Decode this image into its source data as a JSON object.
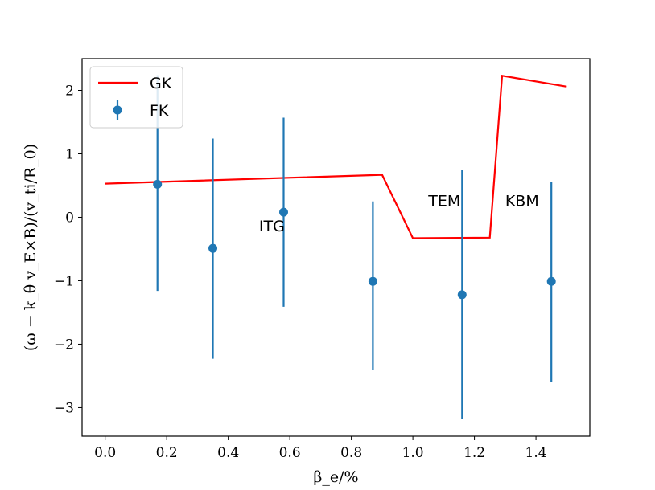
{
  "chart_data": {
    "type": "line",
    "xlabel": "β_e/%",
    "ylabel": "(ω − k_θ v_E×B)/(v_ti/R_0)",
    "xlim": [
      -0.075,
      1.575
    ],
    "ylim": [
      -3.45,
      2.5
    ],
    "xticks": [
      0.0,
      0.2,
      0.4,
      0.6,
      0.8,
      1.0,
      1.2,
      1.4
    ],
    "xtick_labels": [
      "0.0",
      "0.2",
      "0.4",
      "0.6",
      "0.8",
      "1.0",
      "1.2",
      "1.4"
    ],
    "yticks": [
      -3,
      -2,
      -1,
      0,
      1,
      2
    ],
    "ytick_labels": [
      "−3",
      "−2",
      "−1",
      "0",
      "1",
      "2"
    ],
    "grid": false,
    "legend_position": "top-left",
    "series": [
      {
        "name": "GK",
        "kind": "line",
        "color": "#ff0000",
        "x": [
          0.0,
          0.9,
          1.0,
          1.25,
          1.29,
          1.5
        ],
        "y": [
          0.53,
          0.67,
          -0.33,
          -0.32,
          2.23,
          2.06
        ]
      },
      {
        "name": "FK",
        "kind": "errorbar",
        "color": "#1f77b4",
        "x": [
          0.17,
          0.35,
          0.58,
          0.87,
          1.16,
          1.45
        ],
        "y": [
          0.52,
          -0.49,
          0.08,
          -1.01,
          -1.22,
          -1.01
        ],
        "yerr_low": [
          1.68,
          1.74,
          1.49,
          1.39,
          1.96,
          1.58
        ],
        "yerr_high": [
          1.72,
          1.73,
          1.49,
          1.26,
          1.96,
          1.57
        ]
      }
    ],
    "annotations": [
      {
        "text": "ITG",
        "x": 0.5,
        "y": -0.22
      },
      {
        "text": "TEM",
        "x": 1.05,
        "y": 0.18
      },
      {
        "text": "KBM",
        "x": 1.3,
        "y": 0.18
      }
    ]
  }
}
